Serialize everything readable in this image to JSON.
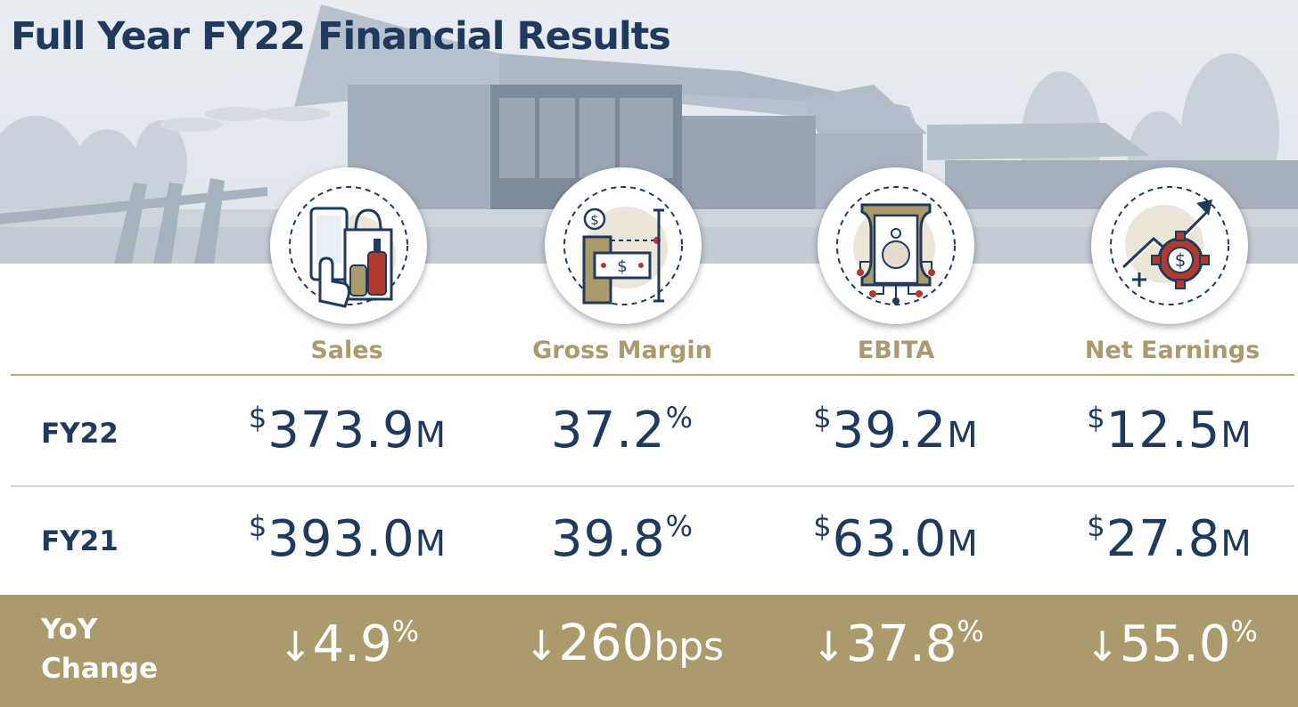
{
  "title": "Full Year FY22 Financial Results",
  "colors": {
    "navy": "#1f3a5c",
    "gold": "#ab9b6c",
    "red": "#b03a2e"
  },
  "columns": [
    {
      "label": "Sales",
      "icon": "shopping-bag-phone-icon"
    },
    {
      "label": "Gross Margin",
      "icon": "margin-cash-icon"
    },
    {
      "label": "EBITA",
      "icon": "money-circuit-icon"
    },
    {
      "label": "Net Earnings",
      "icon": "growth-gear-dollar-icon"
    }
  ],
  "rows": {
    "fy22": {
      "label": "FY22",
      "values": [
        {
          "prefix": "$",
          "number": "373.9",
          "suffix": "M",
          "sup": ""
        },
        {
          "prefix": "",
          "number": "37.2",
          "suffix": "",
          "sup": "%"
        },
        {
          "prefix": "$",
          "number": "39.2",
          "suffix": "M",
          "sup": ""
        },
        {
          "prefix": "$",
          "number": "12.5",
          "suffix": "M",
          "sup": ""
        }
      ]
    },
    "fy21": {
      "label": "FY21",
      "values": [
        {
          "prefix": "$",
          "number": "393.0",
          "suffix": "M",
          "sup": ""
        },
        {
          "prefix": "",
          "number": "39.8",
          "suffix": "",
          "sup": "%"
        },
        {
          "prefix": "$",
          "number": "63.0",
          "suffix": "M",
          "sup": ""
        },
        {
          "prefix": "$",
          "number": "27.8",
          "suffix": "M",
          "sup": ""
        }
      ]
    },
    "yoy": {
      "label_line1": "YoY",
      "label_line2": "Change",
      "values": [
        {
          "arrow": "↓",
          "number": "4.9",
          "sup": "%",
          "suffix": ""
        },
        {
          "arrow": "↓",
          "number": "260",
          "sup": "",
          "suffix": "bps"
        },
        {
          "arrow": "↓",
          "number": "37.8",
          "sup": "%",
          "suffix": ""
        },
        {
          "arrow": "↓",
          "number": "55.0",
          "sup": "%",
          "suffix": ""
        }
      ]
    }
  }
}
